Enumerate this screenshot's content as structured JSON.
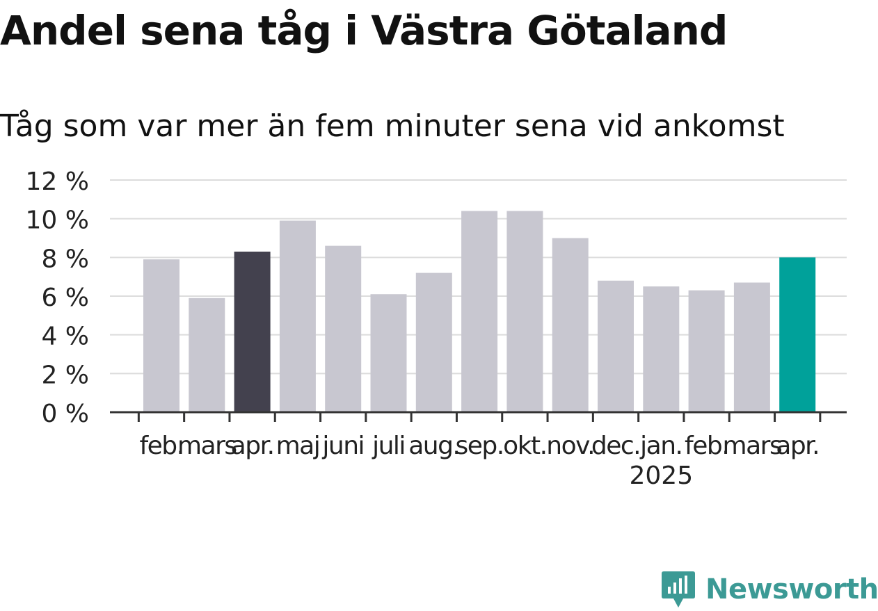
{
  "title": "Andel sena tåg i Västra Götaland",
  "subtitle": "Tåg som var mer än fem minuter sena vid ankomst",
  "brand": {
    "name": "Newsworthy",
    "color": "#3c9a95",
    "icon": "newsworthy-logo-icon"
  },
  "colors": {
    "default_bar": "#c8c7d0",
    "highlight_prev_year": "#43414e",
    "highlight_current": "#00a19a",
    "grid": "#dcdcdc",
    "axis": "#333333",
    "text": "#222222"
  },
  "chart_data": {
    "type": "bar",
    "categories": [
      "feb.",
      "mars",
      "apr.",
      "maj",
      "juni",
      "juli",
      "aug.",
      "sep.",
      "okt.",
      "nov.",
      "dec.",
      "jan.",
      "feb.",
      "mars",
      "apr."
    ],
    "year_label": {
      "index": 11,
      "text": "2025"
    },
    "values": [
      7.9,
      5.9,
      8.3,
      9.9,
      8.6,
      6.1,
      7.2,
      10.4,
      10.4,
      9.0,
      6.8,
      6.5,
      6.3,
      6.7,
      8.0
    ],
    "highlight": {
      "2": "highlight_prev_year",
      "14": "highlight_current"
    },
    "ylim": [
      0,
      12
    ],
    "yticks": [
      0,
      2,
      4,
      6,
      8,
      10,
      12
    ],
    "ytick_labels": [
      "0 %",
      "2 %",
      "4 %",
      "6 %",
      "8 %",
      "10 %",
      "12 %"
    ],
    "grid": true,
    "xlabel": "",
    "ylabel": ""
  }
}
